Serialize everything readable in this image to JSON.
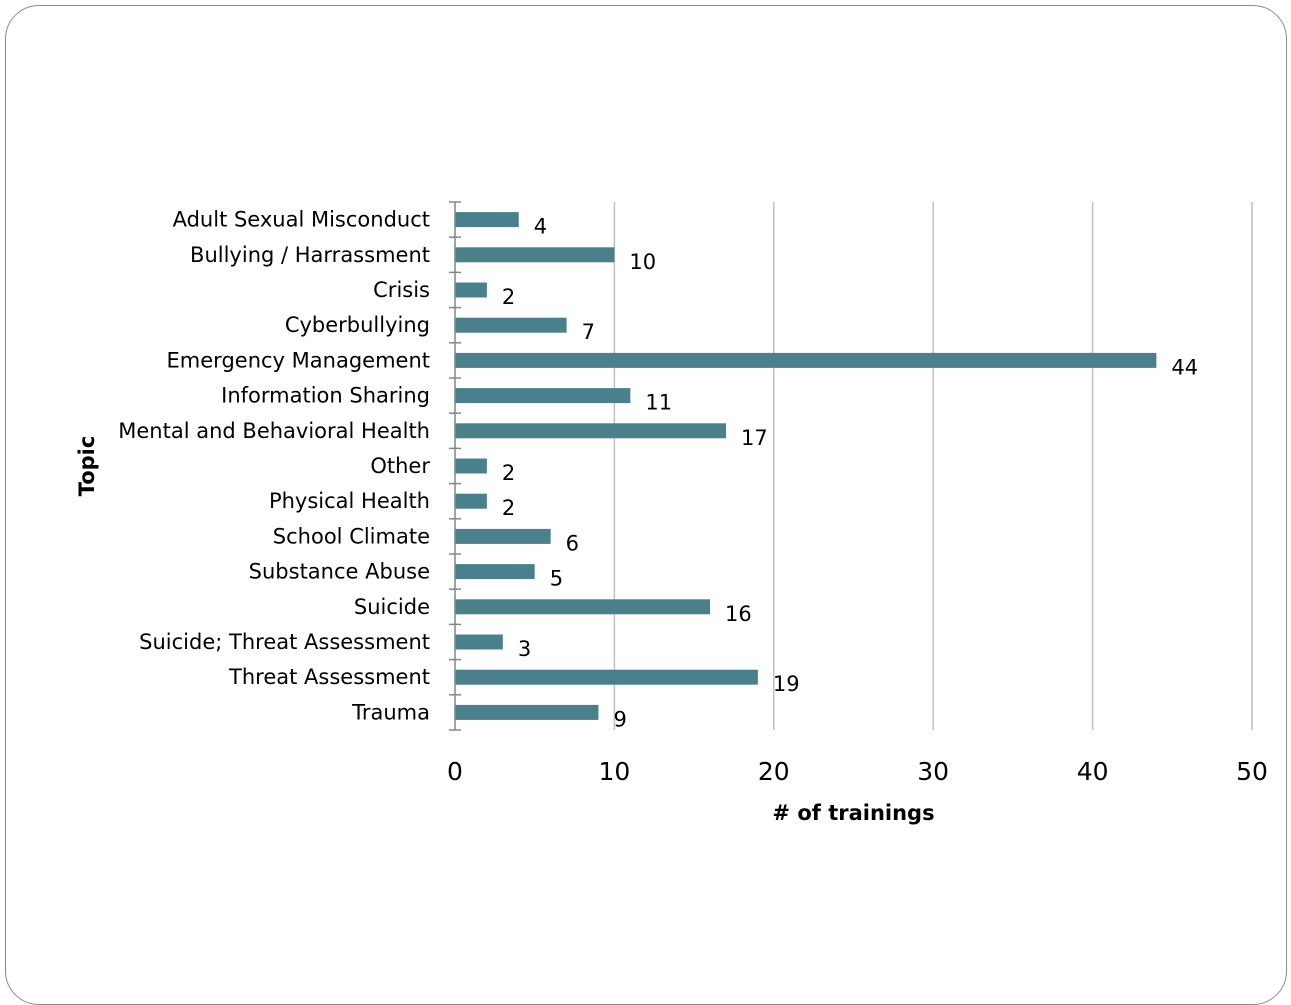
{
  "chart_data": {
    "type": "bar",
    "orientation": "horizontal",
    "categories": [
      "Adult Sexual Misconduct",
      "Bullying / Harrassment",
      "Crisis",
      "Cyberbullying",
      "Emergency Management",
      "Information Sharing",
      "Mental and Behavioral Health",
      "Other",
      "Physical Health",
      "School Climate",
      "Substance Abuse",
      "Suicide",
      "Suicide; Threat Assessment",
      "Threat Assessment",
      "Trauma"
    ],
    "values": [
      4,
      10,
      2,
      7,
      44,
      11,
      17,
      2,
      2,
      6,
      5,
      16,
      3,
      19,
      9
    ],
    "xlabel": "# of trainings",
    "ylabel": "Topic",
    "xlim": [
      0,
      50
    ],
    "xticks": [
      "0",
      "10",
      "20",
      "30",
      "40",
      "50"
    ],
    "grid": "vertical",
    "bar_color": "#4a7f8c",
    "grid_color": "#bfbfbf",
    "axis_color": "#868686"
  }
}
